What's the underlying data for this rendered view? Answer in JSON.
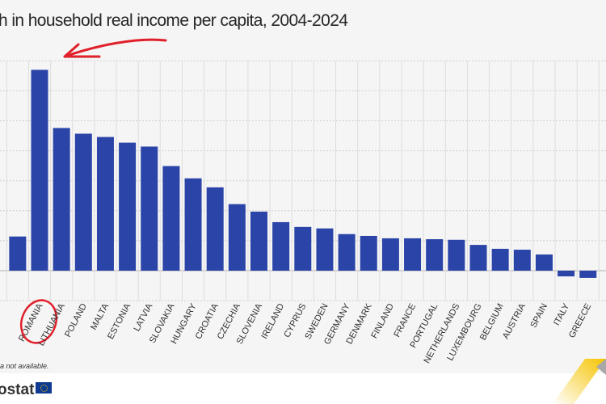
{
  "title": "h in household real income per capita, 2004-2024",
  "note": "a not available.",
  "logo_text": "ostat",
  "colors": {
    "bar": "#2b44a8",
    "highlight": "#e0202a",
    "grid": "#cfcfcf"
  },
  "chart_data": {
    "type": "bar",
    "title": "h in household real income per capita, 2004-2024",
    "xlabel": "",
    "ylabel": "",
    "grid": true,
    "legend": "none",
    "note_on_units": "",
    "categories": [
      "",
      "ROMANIA",
      "LITHUANIA",
      "POLAND",
      "MALTA",
      "ESTONIA",
      "LATVIA",
      "SLOVAKIA",
      "HUNGARY",
      "CROATIA",
      "CZECHIA",
      "SLOVENIA",
      "IRELAND",
      "CYPRUS",
      "SWEDEN",
      "GERMANY",
      "DENMARK",
      "FINLAND",
      "FRANCE",
      "PORTUGAL",
      "NETHERLANDS",
      "LUXEMBOURG",
      "BELGIUM",
      "AUSTRIA",
      "SPAIN",
      "ITALY",
      "GREECE"
    ],
    "values": [
      1.14,
      6.7,
      4.76,
      4.57,
      4.46,
      4.27,
      4.14,
      3.49,
      3.08,
      2.78,
      2.22,
      1.97,
      1.62,
      1.46,
      1.41,
      1.22,
      1.16,
      1.08,
      1.08,
      1.05,
      1.03,
      0.86,
      0.73,
      0.7,
      0.54,
      -0.19,
      -0.24
    ],
    "ylim": [
      -1,
      7
    ],
    "highlighted": "ROMANIA"
  }
}
